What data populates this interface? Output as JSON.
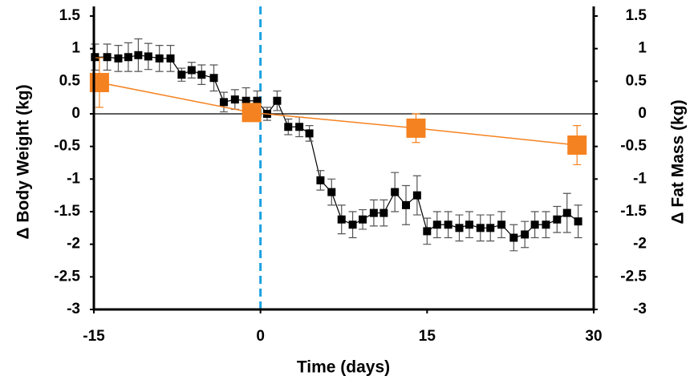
{
  "chart_data": {
    "type": "line",
    "x_label": "Time (days)",
    "y_label": "Δ Body Weight (kg)",
    "y2_label": "Δ Fat Mass (kg)",
    "xlim": [
      -15,
      30
    ],
    "xticks": [
      -15,
      0,
      15,
      30
    ],
    "ylim": [
      -3,
      1.5
    ],
    "yticks": [
      1.5,
      1,
      0.5,
      0,
      -0.5,
      -1,
      -1.5,
      -2,
      -2.5,
      -3
    ],
    "y2lim": [
      -3,
      1.5
    ],
    "y2ticks": [
      1.5,
      1,
      0.5,
      0,
      -0.5,
      -1,
      -1.5,
      -2,
      -2.5,
      -3
    ],
    "zero_line": true,
    "reference_line_x": 0,
    "reference_line_color": "#1ba1e2",
    "series": [
      {
        "name": "Body Weight",
        "color": "#000000",
        "marker_size": 10,
        "x": [
          -14.9,
          -13.8,
          -12.8,
          -11.9,
          -11.0,
          -10.1,
          -9.1,
          -8.1,
          -7.1,
          -6.2,
          -5.3,
          -4.2,
          -3.3,
          -2.3,
          -1.3,
          -0.3,
          0.6,
          1.5,
          2.5,
          3.5,
          4.4,
          5.4,
          6.4,
          7.3,
          8.3,
          9.2,
          10.2,
          11.1,
          12.1,
          13.1,
          14.1,
          15.0,
          15.9,
          16.9,
          17.9,
          18.8,
          19.8,
          20.7,
          21.7,
          22.8,
          23.8,
          24.7,
          25.7,
          26.7,
          27.6,
          28.6
        ],
        "values": [
          0.87,
          0.87,
          0.85,
          0.87,
          0.9,
          0.88,
          0.85,
          0.85,
          0.6,
          0.67,
          0.6,
          0.55,
          0.18,
          0.22,
          0.2,
          0.2,
          0.0,
          0.2,
          -0.2,
          -0.2,
          -0.3,
          -1.02,
          -1.2,
          -1.62,
          -1.7,
          -1.62,
          -1.52,
          -1.52,
          -1.2,
          -1.4,
          -1.25,
          -1.8,
          -1.7,
          -1.7,
          -1.75,
          -1.7,
          -1.75,
          -1.75,
          -1.7,
          -1.9,
          -1.85,
          -1.7,
          -1.7,
          -1.62,
          -1.52,
          -1.65
        ],
        "errors": [
          0.2,
          0.2,
          0.2,
          0.22,
          0.25,
          0.2,
          0.2,
          0.2,
          0.1,
          0.12,
          0.15,
          0.2,
          0.15,
          0.15,
          0.2,
          0.15,
          0.1,
          0.15,
          0.12,
          0.15,
          0.12,
          0.15,
          0.2,
          0.22,
          0.2,
          0.15,
          0.2,
          0.2,
          0.3,
          0.3,
          0.3,
          0.2,
          0.2,
          0.2,
          0.2,
          0.2,
          0.2,
          0.2,
          0.2,
          0.2,
          0.2,
          0.2,
          0.2,
          0.2,
          0.3,
          0.25
        ]
      },
      {
        "name": "Fat Mass",
        "color": "#f58220",
        "marker_size": 24,
        "axis": "y2",
        "x": [
          -14.5,
          -0.8,
          14.0,
          28.5
        ],
        "values": [
          0.48,
          0.02,
          -0.22,
          -0.48
        ],
        "errors": [
          0.38,
          0.1,
          0.22,
          0.3
        ]
      }
    ]
  }
}
